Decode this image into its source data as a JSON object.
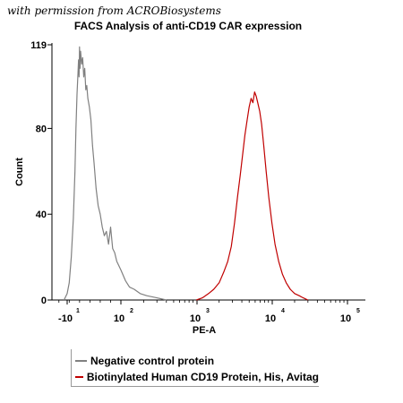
{
  "watermark": "with permission from ACROBiosystems",
  "chart_data": {
    "type": "line",
    "title": "FACS Analysis of anti-CD19 CAR expression",
    "xlabel": "PE-A",
    "ylabel": "Count",
    "ylim": [
      0,
      119
    ],
    "yticks": [
      0,
      40,
      80,
      119
    ],
    "xscale": "biexponential",
    "xlim": [
      -30,
      100000
    ],
    "xticks": [
      {
        "value": -10,
        "base": "-10",
        "exp": "1"
      },
      {
        "value": 100,
        "base": "10",
        "exp": "2"
      },
      {
        "value": 1000,
        "base": "10",
        "exp": "3"
      },
      {
        "value": 10000,
        "base": "10",
        "exp": "4"
      },
      {
        "value": 100000,
        "base": "10",
        "exp": "5"
      }
    ],
    "series": [
      {
        "name": "Negative control protein",
        "color": "#808080",
        "points": [
          [
            -10,
            0
          ],
          [
            -4,
            3
          ],
          [
            0,
            8
          ],
          [
            4,
            20
          ],
          [
            8,
            38
          ],
          [
            11,
            60
          ],
          [
            13,
            80
          ],
          [
            15,
            96
          ],
          [
            17,
            106
          ],
          [
            18,
            112
          ],
          [
            19,
            104
          ],
          [
            20,
            118
          ],
          [
            21,
            108
          ],
          [
            22,
            116
          ],
          [
            24,
            110
          ],
          [
            26,
            113
          ],
          [
            28,
            104
          ],
          [
            30,
            108
          ],
          [
            32,
            98
          ],
          [
            34,
            100
          ],
          [
            36,
            94
          ],
          [
            39,
            90
          ],
          [
            42,
            84
          ],
          [
            45,
            72
          ],
          [
            48,
            64
          ],
          [
            52,
            52
          ],
          [
            56,
            44
          ],
          [
            60,
            40
          ],
          [
            64,
            34
          ],
          [
            68,
            30
          ],
          [
            72,
            32
          ],
          [
            76,
            26
          ],
          [
            80,
            34
          ],
          [
            84,
            24
          ],
          [
            88,
            22
          ],
          [
            92,
            18
          ],
          [
            100,
            14
          ],
          [
            115,
            9
          ],
          [
            130,
            6
          ],
          [
            150,
            5
          ],
          [
            180,
            3
          ],
          [
            220,
            2
          ],
          [
            300,
            1
          ],
          [
            400,
            0
          ]
        ]
      },
      {
        "name": "Biotinylated Human CD19 Protein, His, Avitag",
        "color": "#c00000",
        "points": [
          [
            1000,
            0
          ],
          [
            1200,
            1
          ],
          [
            1450,
            3
          ],
          [
            1700,
            5
          ],
          [
            2000,
            8
          ],
          [
            2300,
            13
          ],
          [
            2600,
            18
          ],
          [
            2900,
            25
          ],
          [
            3200,
            36
          ],
          [
            3500,
            48
          ],
          [
            3800,
            58
          ],
          [
            4100,
            68
          ],
          [
            4400,
            77
          ],
          [
            4700,
            84
          ],
          [
            5000,
            90
          ],
          [
            5300,
            94
          ],
          [
            5600,
            92
          ],
          [
            5900,
            97
          ],
          [
            6200,
            95
          ],
          [
            6500,
            92
          ],
          [
            6900,
            88
          ],
          [
            7300,
            82
          ],
          [
            7800,
            72
          ],
          [
            8400,
            60
          ],
          [
            9100,
            48
          ],
          [
            10000,
            36
          ],
          [
            11000,
            26
          ],
          [
            12300,
            18
          ],
          [
            13800,
            12
          ],
          [
            15500,
            8
          ],
          [
            17500,
            5
          ],
          [
            20000,
            3
          ],
          [
            23000,
            2
          ],
          [
            26000,
            1
          ],
          [
            30000,
            0
          ]
        ]
      }
    ],
    "legend_position": "bottom"
  }
}
